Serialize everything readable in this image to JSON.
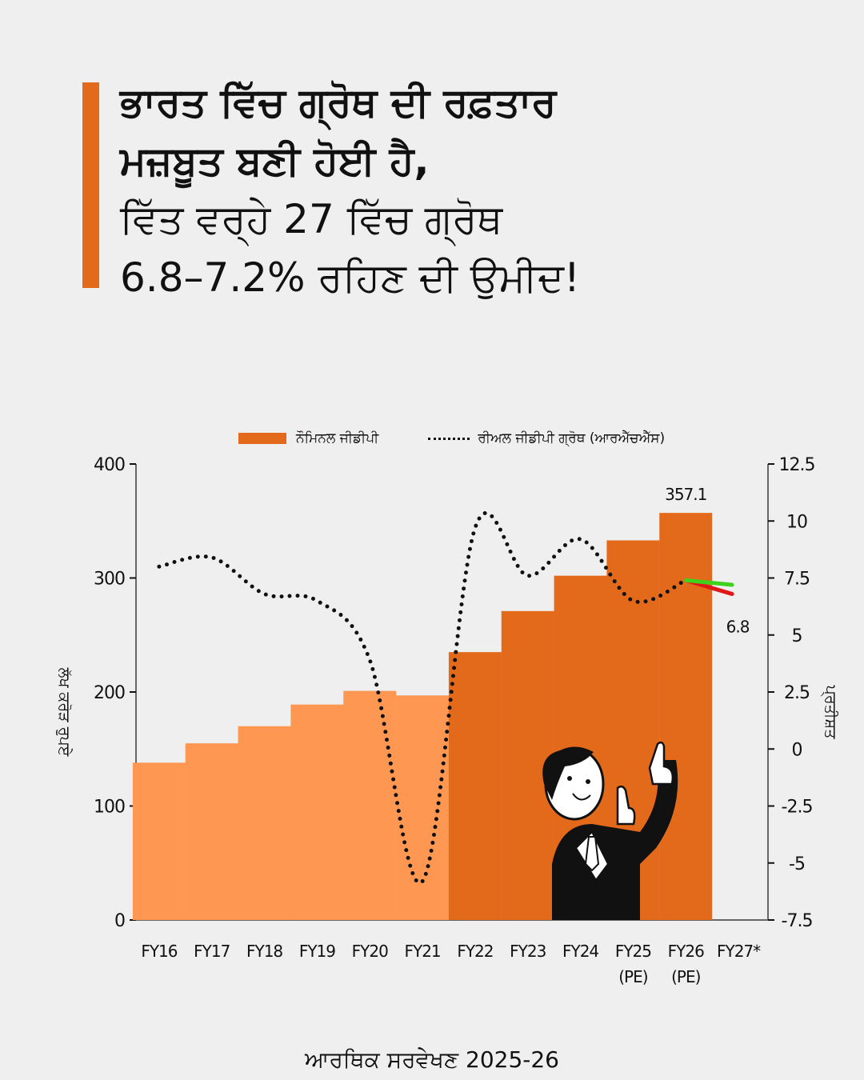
{
  "headline": {
    "line1": "ਭਾਰਤ ਵਿੱਚ ਗ੍ਰੋਥ ਦੀ ਰਫ਼ਤਾਰ",
    "line2": "ਮਜ਼ਬੂਤ ਬਣੀ ਹੋਈ ਹੈ,",
    "line3": "ਵਿੱਤ ਵਰ੍ਹੇ 27 ਵਿੱਚ ਗ੍ਰੋਥ",
    "line4": "6.8–7.2% ਰਹਿਣ ਦੀ ਉਮੀਦ!"
  },
  "colors": {
    "accent": "#e36a1a",
    "bar_light": "#fd9752",
    "bar_dark": "#e36a1a",
    "line": "#111111",
    "projection_high": "#3fd21c",
    "projection_low": "#e01818",
    "background": "#efefef"
  },
  "footer": {
    "source": "ਆਰਥਿਕ ਸਰਵੇਖਣ 2025-26"
  },
  "chart_data": {
    "type": "bar",
    "title": "",
    "legend": {
      "placement": "top-center",
      "bar_label": "ਨੌਮਿਨਲ ਜੀਡੀਪੀ",
      "line_label": "ਰੀਅਲ ਜੀਡੀਪੀ ਗ੍ਰੋਥ (ਆਰਐੱਚਐੱਸ)"
    },
    "categories": [
      "FY16",
      "FY17",
      "FY18",
      "FY19",
      "FY20",
      "FY21",
      "FY22",
      "FY23",
      "FY24",
      "FY25",
      "FY26",
      "FY27*"
    ],
    "category_sublabels": [
      "",
      "",
      "",
      "",
      "",
      "",
      "",
      "",
      "",
      "(PE)",
      "(PE)",
      ""
    ],
    "xlabel": "",
    "ylabel": "ਲੱਖ ਕਰੋੜ ਰੁਪਏ",
    "ylabel_right": "ਪ੍ਰਤੀਸ਼ਤ",
    "ylim": [
      0,
      400
    ],
    "yticks": [
      0,
      100,
      200,
      300,
      400
    ],
    "ylim_right": [
      -7.5,
      12.5
    ],
    "yticks_right": [
      -7.5,
      -5,
      -2.5,
      0,
      2.5,
      5,
      7.5,
      10,
      12.5
    ],
    "grid": false,
    "series": [
      {
        "name": "ਨੌਮਿਨਲ ਜੀਡੀਪੀ",
        "type": "bar",
        "axis": "left",
        "values": [
          138,
          155,
          170,
          189,
          201,
          197,
          235,
          271,
          302,
          333,
          357.1,
          null
        ],
        "shade": [
          "light",
          "light",
          "light",
          "light",
          "light",
          "light",
          "dark",
          "dark",
          "dark",
          "dark",
          "dark",
          ""
        ],
        "data_labels": {
          "10": "357.1"
        }
      },
      {
        "name": "ਰੀਅਲ ਜੀਡੀਪੀ ਗ੍ਰੋਥ (ਆਰਐੱਚਐੱਸ)",
        "type": "line",
        "style": "dotted",
        "axis": "right",
        "values": [
          8.0,
          8.4,
          6.8,
          6.5,
          3.9,
          -5.8,
          9.7,
          7.6,
          9.2,
          6.5,
          7.4,
          null
        ]
      },
      {
        "name": "FY27 projection (high)",
        "type": "line",
        "axis": "right",
        "values": [
          null,
          null,
          null,
          null,
          null,
          null,
          null,
          null,
          null,
          null,
          7.4,
          7.2
        ]
      },
      {
        "name": "FY27 projection (low)",
        "type": "line",
        "axis": "right",
        "values": [
          null,
          null,
          null,
          null,
          null,
          null,
          null,
          null,
          null,
          null,
          7.4,
          6.8
        ],
        "data_labels": {
          "11": "6.8"
        }
      }
    ]
  }
}
